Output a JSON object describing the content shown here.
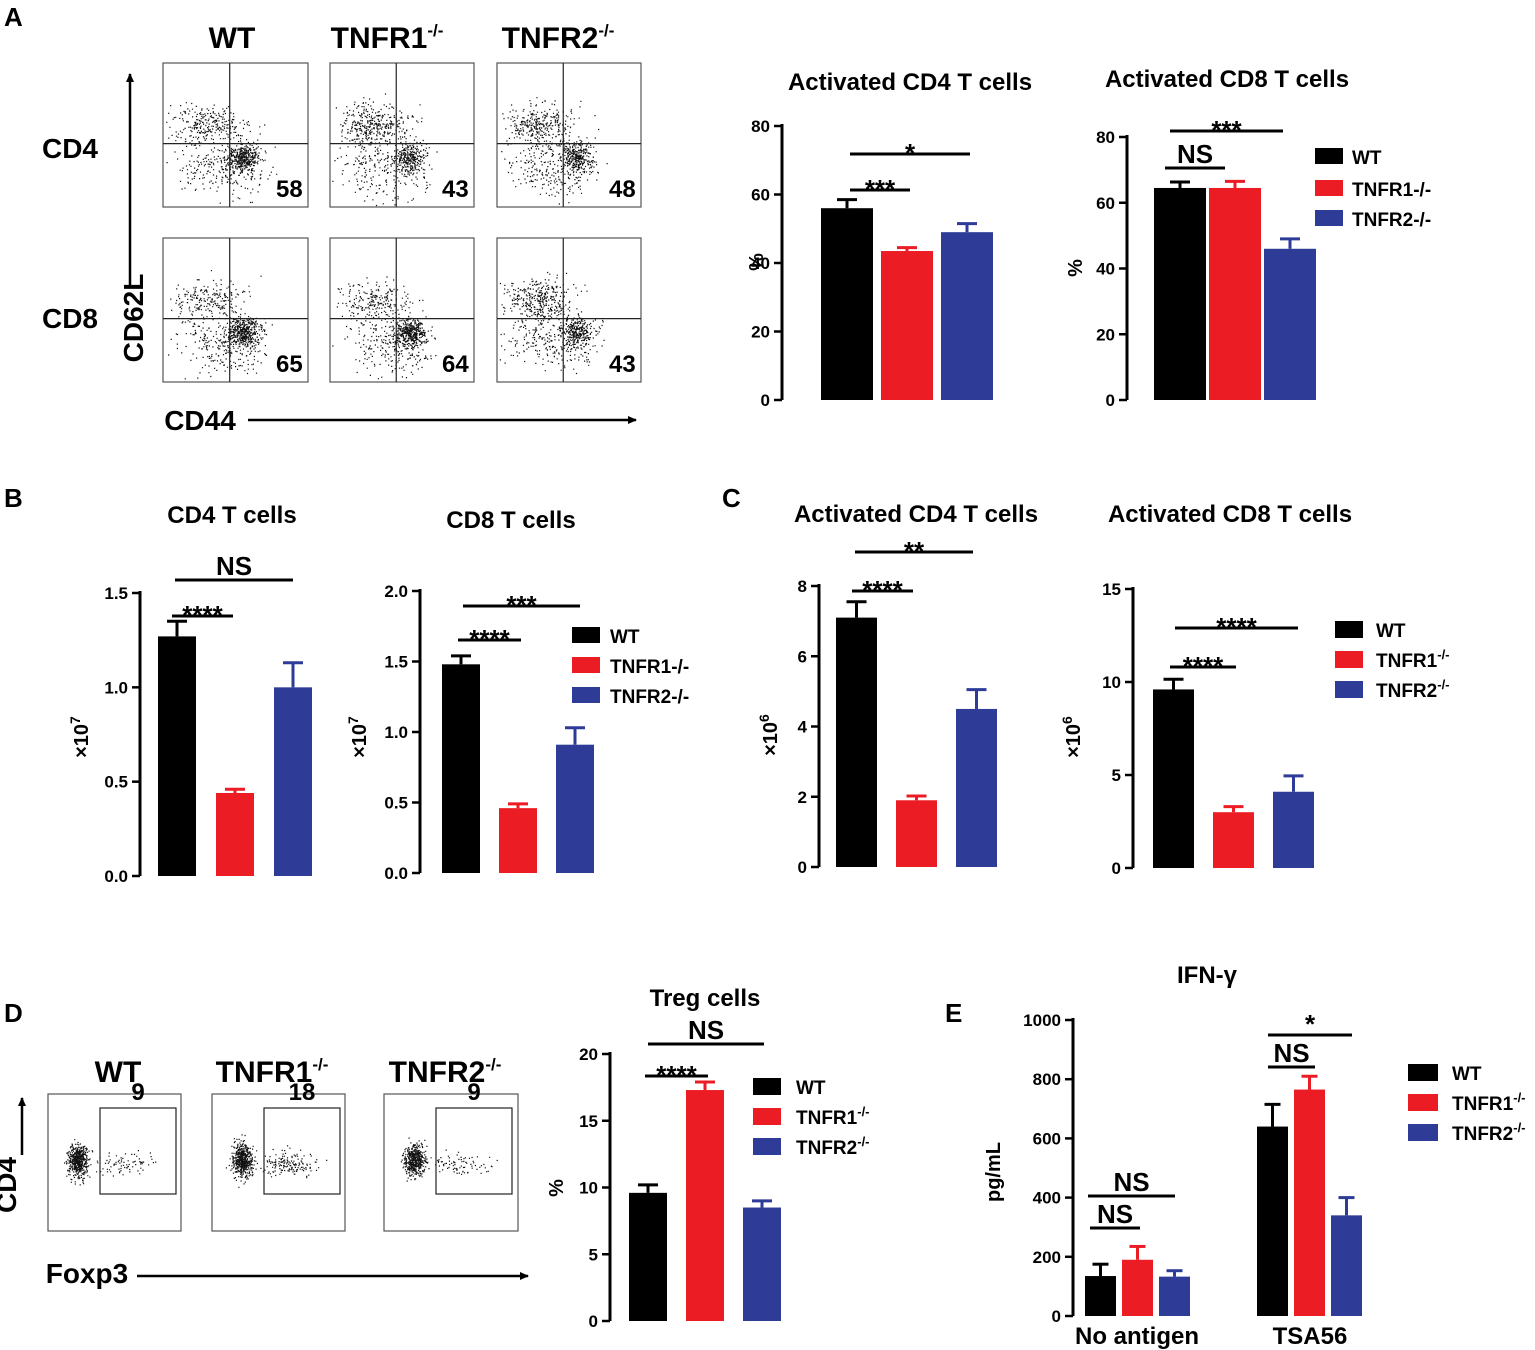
{
  "colors": {
    "WT": "#000000",
    "TNFR1": "#ec1c24",
    "TNFR2": "#2e3b97"
  },
  "panel_letters": {
    "A": "A",
    "B": "B",
    "C": "C",
    "D": "D",
    "E": "E"
  },
  "panelA": {
    "col_labels": [
      "WT",
      "TNFR1",
      "TNFR2"
    ],
    "col_sup": "-/-",
    "row_labels": [
      "CD4",
      "CD8"
    ],
    "y_axis_label": "CD62L",
    "x_axis_label": "CD44",
    "percentages": [
      [
        "58",
        "43",
        "48"
      ],
      [
        "65",
        "64",
        "43"
      ]
    ]
  },
  "panelD": {
    "col_labels": [
      "WT",
      "TNFR1",
      "TNFR2"
    ],
    "col_sup": "-/-",
    "y_axis_label": "CD4",
    "x_axis_label": "Foxp3",
    "percentages": [
      "9",
      "18",
      "9"
    ]
  },
  "legend_plain": {
    "items": [
      "WT",
      "TNFR1-/-",
      "TNFR2-/-"
    ]
  },
  "legend_sup": {
    "items": [
      "WT",
      "TNFR1",
      "TNFR2"
    ],
    "sup": "-/-"
  },
  "chart_data": [
    {
      "id": "A_cd4",
      "type": "bar",
      "title": "Activated CD4 T cells",
      "ylabel": "%",
      "categories": [
        "WT",
        "TNFR1-/-",
        "TNFR2-/-"
      ],
      "values": [
        56,
        43.5,
        49
      ],
      "errors": [
        2.5,
        1,
        2.5
      ],
      "ylim": [
        0,
        80
      ],
      "ticks": [
        "0",
        "20",
        "40",
        "60",
        "80"
      ],
      "significance": [
        {
          "groups": [
            "WT",
            "TNFR1-/-"
          ],
          "label": "***"
        },
        {
          "groups": [
            "WT",
            "TNFR2-/-"
          ],
          "label": "*"
        }
      ]
    },
    {
      "id": "A_cd8",
      "type": "bar",
      "title": "Activated CD8 T cells",
      "ylabel": "%",
      "categories": [
        "WT",
        "TNFR1-/-",
        "TNFR2-/-"
      ],
      "values": [
        64.5,
        64.5,
        46
      ],
      "errors": [
        1.8,
        2,
        3
      ],
      "ylim": [
        0,
        80
      ],
      "ticks": [
        "0",
        "20",
        "40",
        "60",
        "80"
      ],
      "significance": [
        {
          "groups": [
            "WT",
            "TNFR1-/-"
          ],
          "label": "NS"
        },
        {
          "groups": [
            "WT",
            "TNFR2-/-"
          ],
          "label": "***"
        }
      ]
    },
    {
      "id": "B_cd4",
      "type": "bar",
      "title": "CD4 T cells",
      "ylabel": "×10",
      "ylabel_sup": "7",
      "categories": [
        "WT",
        "TNFR1-/-",
        "TNFR2-/-"
      ],
      "values": [
        1.27,
        0.44,
        1.0
      ],
      "errors": [
        0.08,
        0.02,
        0.13
      ],
      "ylim": [
        0,
        1.5
      ],
      "ticks": [
        "0.0",
        "0.5",
        "1.0",
        "1.5"
      ],
      "significance": [
        {
          "groups": [
            "WT",
            "TNFR1-/-"
          ],
          "label": "****"
        },
        {
          "groups": [
            "WT",
            "TNFR2-/-"
          ],
          "label": "NS"
        }
      ]
    },
    {
      "id": "B_cd8",
      "type": "bar",
      "title": "CD8 T cells",
      "ylabel": "×10",
      "ylabel_sup": "7",
      "categories": [
        "WT",
        "TNFR1-/-",
        "TNFR2-/-"
      ],
      "values": [
        1.48,
        0.46,
        0.91
      ],
      "errors": [
        0.06,
        0.03,
        0.12
      ],
      "ylim": [
        0,
        2.0
      ],
      "ticks": [
        "0.0",
        "0.5",
        "1.0",
        "1.5",
        "2.0"
      ],
      "significance": [
        {
          "groups": [
            "WT",
            "TNFR1-/-"
          ],
          "label": "****"
        },
        {
          "groups": [
            "WT",
            "TNFR2-/-"
          ],
          "label": "***"
        }
      ]
    },
    {
      "id": "C_cd4",
      "type": "bar",
      "title": "Activated CD4 T cells",
      "ylabel": "×10",
      "ylabel_sup": "6",
      "categories": [
        "WT",
        "TNFR1-/-",
        "TNFR2-/-"
      ],
      "values": [
        7.1,
        1.9,
        4.5
      ],
      "errors": [
        0.45,
        0.12,
        0.55
      ],
      "ylim": [
        0,
        8
      ],
      "ticks": [
        "0",
        "2",
        "4",
        "6",
        "8"
      ],
      "significance": [
        {
          "groups": [
            "WT",
            "TNFR1-/-"
          ],
          "label": "****"
        },
        {
          "groups": [
            "WT",
            "TNFR2-/-"
          ],
          "label": "**"
        }
      ]
    },
    {
      "id": "C_cd8",
      "type": "bar",
      "title": "Activated CD8 T cells",
      "ylabel": "×10",
      "ylabel_sup": "6",
      "categories": [
        "WT",
        "TNFR1-/-",
        "TNFR2-/-"
      ],
      "values": [
        9.6,
        3.0,
        4.1
      ],
      "errors": [
        0.55,
        0.3,
        0.85
      ],
      "ylim": [
        0,
        15
      ],
      "ticks": [
        "0",
        "5",
        "10",
        "15"
      ],
      "significance": [
        {
          "groups": [
            "WT",
            "TNFR1-/-"
          ],
          "label": "****"
        },
        {
          "groups": [
            "WT",
            "TNFR2-/-"
          ],
          "label": "****"
        }
      ]
    },
    {
      "id": "D_treg",
      "type": "bar",
      "title": "Treg cells",
      "ylabel": "%",
      "categories": [
        "WT",
        "TNFR1-/-",
        "TNFR2-/-"
      ],
      "values": [
        9.6,
        17.3,
        8.5
      ],
      "errors": [
        0.6,
        0.6,
        0.5
      ],
      "ylim": [
        0,
        20
      ],
      "ticks": [
        "0",
        "5",
        "10",
        "15",
        "20"
      ],
      "significance": [
        {
          "groups": [
            "WT",
            "TNFR1-/-"
          ],
          "label": "****"
        },
        {
          "groups": [
            "WT",
            "TNFR2-/-"
          ],
          "label": "NS"
        }
      ]
    },
    {
      "id": "E_ifng",
      "type": "bar",
      "title": "IFN-γ",
      "ylabel": "pg/mL",
      "categories": [
        "No antigen",
        "TSA56"
      ],
      "series": [
        {
          "name": "WT",
          "values": [
            135,
            640
          ],
          "errors": [
            40,
            75
          ]
        },
        {
          "name": "TNFR1-/-",
          "values": [
            190,
            765
          ],
          "errors": [
            45,
            45
          ]
        },
        {
          "name": "TNFR2-/-",
          "values": [
            133,
            340
          ],
          "errors": [
            20,
            60
          ]
        }
      ],
      "ylim": [
        0,
        1000
      ],
      "ticks": [
        "0",
        "200",
        "400",
        "600",
        "800",
        "1000"
      ],
      "significance": [
        {
          "category": "No antigen",
          "groups": [
            "WT",
            "TNFR1-/-"
          ],
          "label": "NS"
        },
        {
          "category": "No antigen",
          "groups": [
            "WT",
            "TNFR2-/-"
          ],
          "label": "NS"
        },
        {
          "category": "TSA56",
          "groups": [
            "WT",
            "TNFR1-/-"
          ],
          "label": "NS"
        },
        {
          "category": "TSA56",
          "groups": [
            "WT",
            "TNFR2-/-"
          ],
          "label": "*"
        }
      ]
    }
  ]
}
